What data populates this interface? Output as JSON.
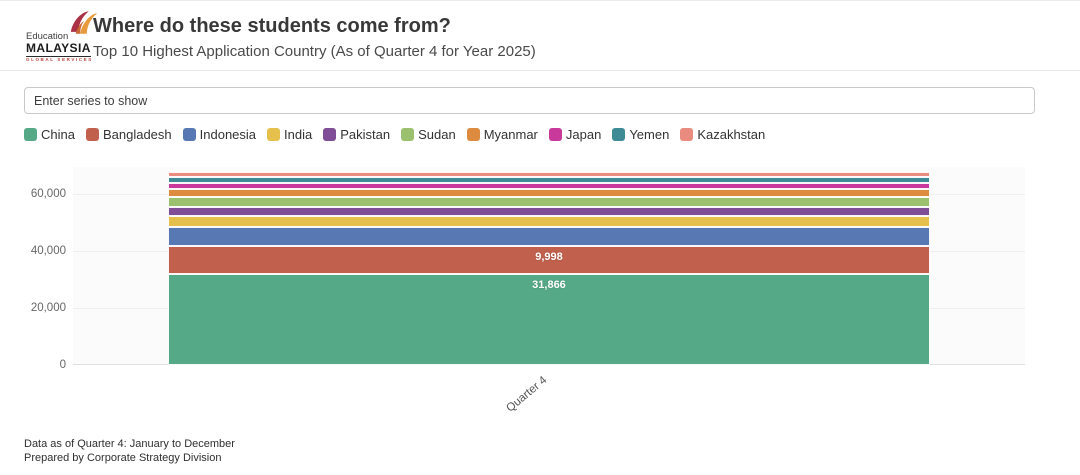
{
  "header": {
    "logo": {
      "word1": "Education",
      "word2": "MALAYSIA",
      "word3": "GLOBAL SERVICES",
      "icon_colors": {
        "maroon": "#A93246",
        "orange": "#E79A3C"
      }
    },
    "title": "Where do these students come from?",
    "subtitle": "Top 10 Highest Application Country (As of Quarter 4 for Year 2025)"
  },
  "series_filter": {
    "placeholder": "Enter series to show"
  },
  "chart_data": {
    "type": "bar",
    "stacked": true,
    "title": "Where do these students come from?",
    "categories": [
      "Quarter 4"
    ],
    "series": [
      {
        "name": "China",
        "color": "#55A987",
        "values": [
          31866
        ],
        "data_label": "31,866"
      },
      {
        "name": "Bangladesh",
        "color": "#C2604E",
        "values": [
          9998
        ],
        "data_label": "9,998"
      },
      {
        "name": "Indonesia",
        "color": "#5878B4",
        "values": [
          6650
        ],
        "estimated": true
      },
      {
        "name": "India",
        "color": "#E6C04D",
        "values": [
          3650
        ],
        "estimated": true
      },
      {
        "name": "Pakistan",
        "color": "#7F4E96",
        "values": [
          3400
        ],
        "estimated": true
      },
      {
        "name": "Sudan",
        "color": "#9CC16E",
        "values": [
          3350
        ],
        "estimated": true
      },
      {
        "name": "Myanmar",
        "color": "#DD8B3F",
        "values": [
          3000
        ],
        "estimated": true
      },
      {
        "name": "Japan",
        "color": "#C8399B",
        "values": [
          2050
        ],
        "estimated": true
      },
      {
        "name": "Yemen",
        "color": "#3D8B95",
        "values": [
          2000
        ],
        "estimated": true
      },
      {
        "name": "Kazakhstan",
        "color": "#E98B7E",
        "values": [
          1950
        ],
        "estimated": true
      }
    ],
    "ylim": [
      0,
      69500
    ],
    "yticks": [
      {
        "value": 0,
        "label": "0"
      },
      {
        "value": 20000,
        "label": "20,000"
      },
      {
        "value": 40000,
        "label": "40,000"
      },
      {
        "value": 60000,
        "label": "60,000"
      }
    ],
    "xlabel": "",
    "ylabel": "",
    "grid": true,
    "legend_position": "top",
    "bar_width_ratio": 0.8
  },
  "footer": {
    "line1": "Data as of Quarter 4: January to December",
    "line2": "Prepared by Corporate Strategy Division"
  }
}
